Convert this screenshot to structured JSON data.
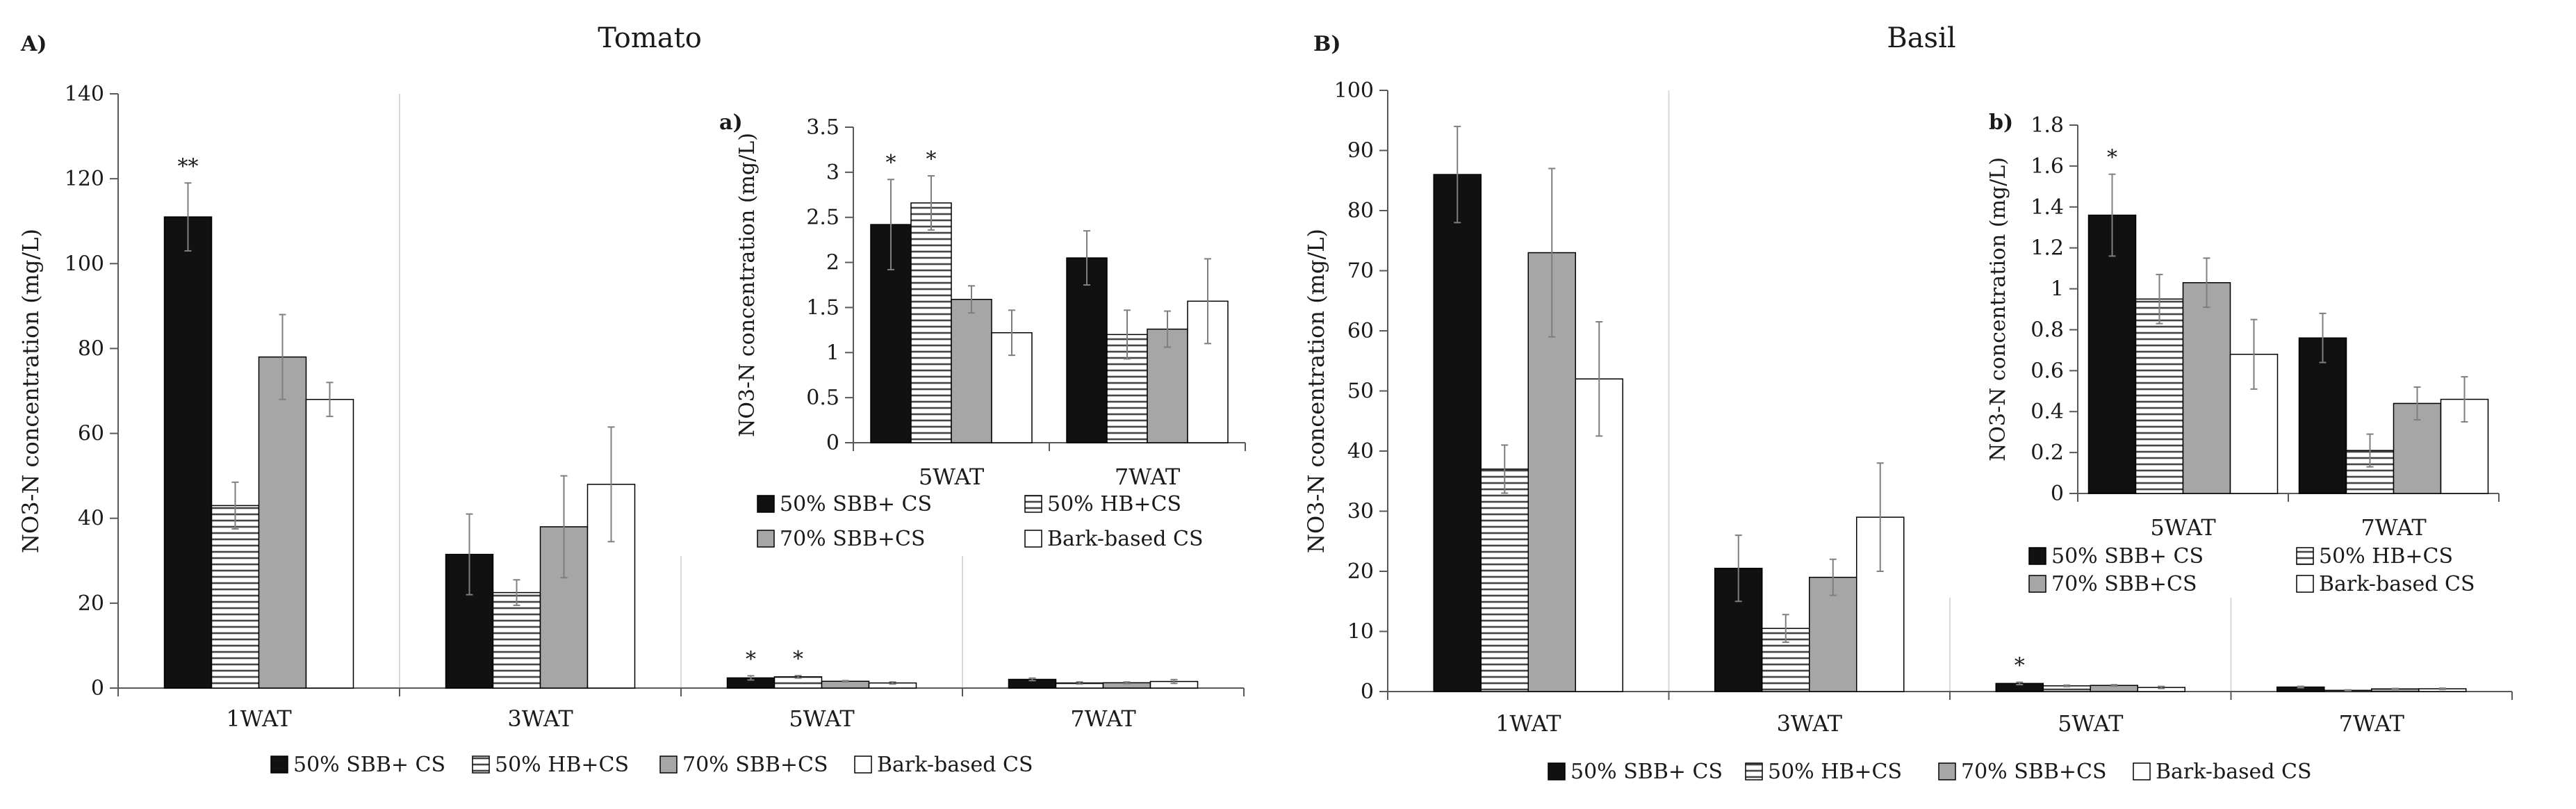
{
  "styles": {
    "colors": {
      "black": "#111111",
      "gray": "#a6a6a6",
      "white": "#ffffff",
      "hatch": "#444444",
      "axis": "#595959",
      "grid_divider": "#d9d9d9",
      "error": "#7f7f7f",
      "text": "#1a1a1a"
    }
  },
  "legend_labels": [
    "50% SBB+ CS",
    "50% HB+CS",
    "70% SBB+CS",
    "Bark-based CS"
  ],
  "chart_data": [
    {
      "id": "A",
      "type": "bar",
      "panel_label": "A)",
      "title": "Tomato",
      "xlabel": "",
      "ylabel": "NO3-N concentration (mg/L)",
      "ylim": [
        0,
        140
      ],
      "yticks": [
        "0",
        "20",
        "40",
        "60",
        "80",
        "100",
        "120",
        "140"
      ],
      "categories": [
        "1WAT",
        "3WAT",
        "5WAT",
        "7WAT"
      ],
      "legend_position": "bottom",
      "series": [
        {
          "name": "50% SBB+ CS",
          "fill": "black",
          "values": [
            111,
            31.5,
            2.4,
            2.05
          ],
          "errors": [
            8,
            9.5,
            0.5,
            0.3
          ]
        },
        {
          "name": "50% HB+CS",
          "fill": "hatch",
          "values": [
            43,
            22.5,
            2.65,
            1.2
          ],
          "errors": [
            5.5,
            3,
            0.3,
            0.25
          ]
        },
        {
          "name": "70% SBB+CS",
          "fill": "gray",
          "values": [
            78,
            38,
            1.6,
            1.25
          ],
          "errors": [
            10,
            12,
            0.15,
            0.2
          ]
        },
        {
          "name": "Bark-based CS",
          "fill": "white",
          "values": [
            68,
            48,
            1.2,
            1.55
          ],
          "errors": [
            4,
            13.5,
            0.25,
            0.45
          ]
        }
      ],
      "annotations": [
        {
          "category": "1WAT",
          "series": "50% SBB+ CS",
          "text": "**"
        },
        {
          "category": "5WAT",
          "series": "50% SBB+ CS",
          "text": "*"
        },
        {
          "category": "5WAT",
          "series": "50% HB+CS",
          "text": "*"
        }
      ]
    },
    {
      "id": "a",
      "type": "bar",
      "panel_label": "a)",
      "title": "",
      "xlabel": "",
      "ylabel": "NO3-N concentration (mg/L)",
      "ylim": [
        0,
        3.5
      ],
      "yticks": [
        "0",
        "0.5",
        "1",
        "1.5",
        "2",
        "2.5",
        "3",
        "3.5"
      ],
      "categories": [
        "5WAT",
        "7WAT"
      ],
      "legend_position": "bottom",
      "series": [
        {
          "name": "50% SBB+ CS",
          "fill": "black",
          "values": [
            2.42,
            2.05
          ],
          "errors": [
            0.5,
            0.3
          ]
        },
        {
          "name": "50% HB+CS",
          "fill": "hatch",
          "values": [
            2.66,
            1.2
          ],
          "errors": [
            0.3,
            0.27
          ]
        },
        {
          "name": "70% SBB+CS",
          "fill": "gray",
          "values": [
            1.59,
            1.26
          ],
          "errors": [
            0.15,
            0.2
          ]
        },
        {
          "name": "Bark-based CS",
          "fill": "white",
          "values": [
            1.22,
            1.57
          ],
          "errors": [
            0.25,
            0.47
          ]
        }
      ],
      "annotations": [
        {
          "category": "5WAT",
          "series": "50% SBB+ CS",
          "text": "*"
        },
        {
          "category": "5WAT",
          "series": "50% HB+CS",
          "text": "*"
        }
      ]
    },
    {
      "id": "B",
      "type": "bar",
      "panel_label": "B)",
      "title": "Basil",
      "xlabel": "",
      "ylabel": "NO3-N concentration (mg/L)",
      "ylim": [
        0,
        100
      ],
      "yticks": [
        "0",
        "10",
        "20",
        "30",
        "40",
        "50",
        "60",
        "70",
        "80",
        "90",
        "100"
      ],
      "categories": [
        "1WAT",
        "3WAT",
        "5WAT",
        "7WAT"
      ],
      "legend_position": "bottom",
      "series": [
        {
          "name": "50% SBB+ CS",
          "fill": "black",
          "values": [
            86,
            20.5,
            1.35,
            0.75
          ],
          "errors": [
            8,
            5.5,
            0.2,
            0.12
          ]
        },
        {
          "name": "50% HB+CS",
          "fill": "hatch",
          "values": [
            37,
            10.5,
            0.95,
            0.2
          ],
          "errors": [
            4,
            2.3,
            0.12,
            0.08
          ]
        },
        {
          "name": "70% SBB+CS",
          "fill": "gray",
          "values": [
            73,
            19,
            1.02,
            0.44
          ],
          "errors": [
            14,
            3,
            0.12,
            0.08
          ]
        },
        {
          "name": "Bark-based CS",
          "fill": "white",
          "values": [
            52,
            29,
            0.68,
            0.46
          ],
          "errors": [
            9.5,
            9,
            0.17,
            0.11
          ]
        }
      ],
      "annotations": [
        {
          "category": "5WAT",
          "series": "50% SBB+ CS",
          "text": "*"
        }
      ]
    },
    {
      "id": "b",
      "type": "bar",
      "panel_label": "b)",
      "title": "",
      "xlabel": "",
      "ylabel": "NO3-N concentration (mg/L)",
      "ylim": [
        0,
        1.8
      ],
      "yticks": [
        "0",
        "0.2",
        "0.4",
        "0.6",
        "0.8",
        "1",
        "1.2",
        "1.4",
        "1.6",
        "1.8"
      ],
      "categories": [
        "5WAT",
        "7WAT"
      ],
      "legend_position": "bottom",
      "series": [
        {
          "name": "50% SBB+ CS",
          "fill": "black",
          "values": [
            1.36,
            0.76
          ],
          "errors": [
            0.2,
            0.12
          ]
        },
        {
          "name": "50% HB+CS",
          "fill": "hatch",
          "values": [
            0.95,
            0.21
          ],
          "errors": [
            0.12,
            0.08
          ]
        },
        {
          "name": "70% SBB+CS",
          "fill": "gray",
          "values": [
            1.03,
            0.44
          ],
          "errors": [
            0.12,
            0.08
          ]
        },
        {
          "name": "Bark-based CS",
          "fill": "white",
          "values": [
            0.68,
            0.46
          ],
          "errors": [
            0.17,
            0.11
          ]
        }
      ],
      "annotations": [
        {
          "category": "5WAT",
          "series": "50% SBB+ CS",
          "text": "*"
        }
      ]
    }
  ]
}
